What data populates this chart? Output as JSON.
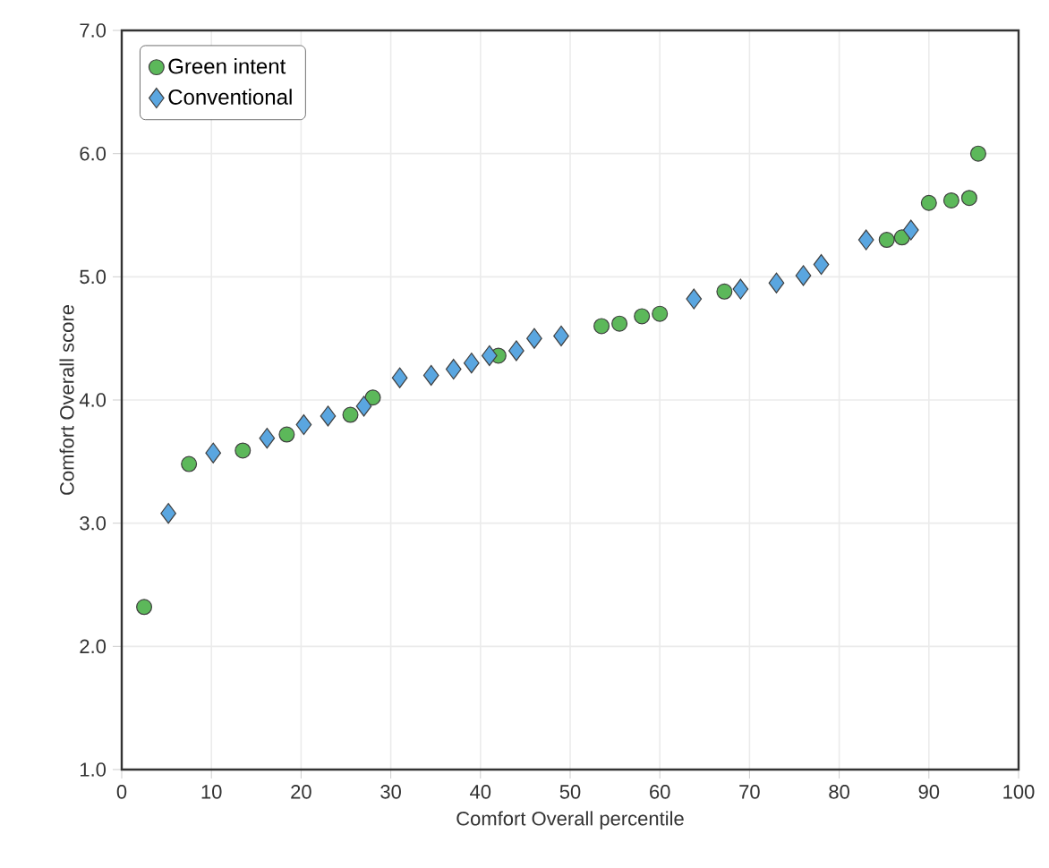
{
  "chart_data": {
    "type": "scatter",
    "xlabel": "Comfort Overall percentile",
    "ylabel": "Comfort Overall score",
    "xlim": [
      0,
      100
    ],
    "ylim": [
      1.0,
      7.0
    ],
    "xticks": [
      0,
      10,
      20,
      30,
      40,
      50,
      60,
      70,
      80,
      90,
      100
    ],
    "yticks": [
      {
        "value": 1,
        "label": "1.0"
      },
      {
        "value": 2,
        "label": "2.0"
      },
      {
        "value": 3,
        "label": "3.0"
      },
      {
        "value": 4,
        "label": "4.0"
      },
      {
        "value": 5,
        "label": "5.0"
      },
      {
        "value": 6,
        "label": "6.0"
      },
      {
        "value": 7,
        "label": "7.0"
      }
    ],
    "grid": true,
    "legend": "top left",
    "series": [
      {
        "name": "Green intent",
        "color": "#5cb85a",
        "marker": "circle",
        "x": [
          2.5,
          7.5,
          13.5,
          18.4,
          25.5,
          28,
          31,
          35,
          39.5,
          42,
          49,
          53.5,
          55.5,
          58,
          60,
          67.2,
          85.3,
          87,
          90,
          92.5,
          94.5,
          95.5
        ],
        "values": [
          2.32,
          3.48,
          3.59,
          3.72,
          3.88,
          4.02,
          null,
          null,
          null,
          4.36,
          null,
          4.6,
          4.62,
          4.68,
          4.7,
          4.88,
          5.3,
          5.32,
          5.6,
          5.62,
          5.64,
          6.0
        ]
      },
      {
        "name": "Conventional",
        "color": "#5aa6e0",
        "marker": "diamond",
        "x": [
          5.2,
          10.2,
          16.2,
          20.3,
          23,
          27,
          31,
          34.5,
          37,
          39,
          41,
          44,
          46,
          49,
          63.8,
          69,
          73,
          76,
          78,
          83,
          88
        ],
        "values": [
          3.08,
          3.57,
          3.69,
          3.8,
          3.87,
          3.95,
          4.18,
          4.2,
          4.25,
          4.3,
          4.36,
          4.4,
          4.5,
          4.52,
          4.82,
          4.9,
          4.95,
          5.01,
          5.1,
          5.3,
          5.38
        ]
      }
    ]
  }
}
